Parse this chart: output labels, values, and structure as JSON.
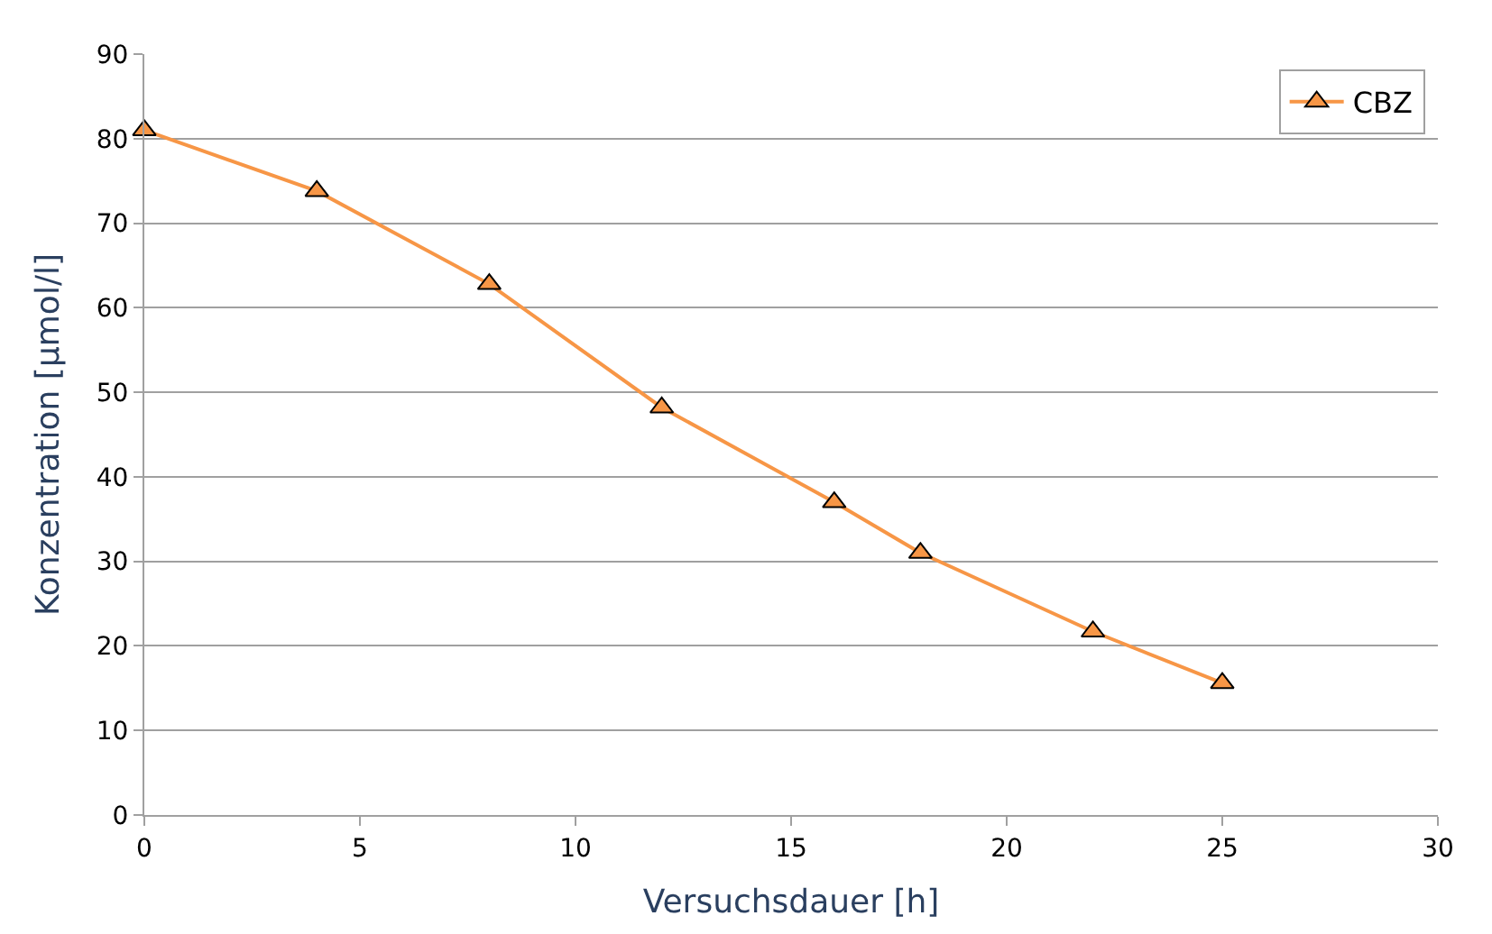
{
  "chart_data": {
    "type": "line",
    "xlabel": "Versuchsdauer [h]",
    "ylabel": "Konzentration [µmol/l]",
    "x": [
      0,
      4,
      8,
      12,
      16,
      18,
      22,
      25
    ],
    "series": [
      {
        "name": "CBZ",
        "color": "#f79646",
        "values": [
          81.0,
          73.8,
          62.8,
          48.2,
          37.0,
          31.0,
          21.7,
          15.6
        ]
      }
    ],
    "xlim": [
      0,
      30
    ],
    "xticks": [
      0,
      5,
      10,
      15,
      20,
      25,
      30
    ],
    "ylim": [
      0,
      90
    ],
    "yticks": [
      0,
      10,
      20,
      30,
      40,
      50,
      60,
      70,
      80,
      90
    ],
    "grid": "y",
    "legend": "top right",
    "marker": "triangle",
    "line_style": "solid"
  }
}
